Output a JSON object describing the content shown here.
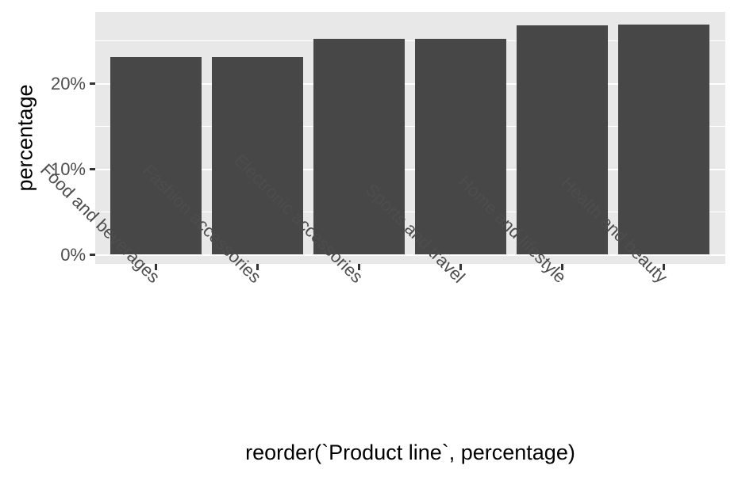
{
  "chart_data": {
    "type": "bar",
    "title": "",
    "xlabel": "reorder(`Product line`, percentage)",
    "ylabel": "percentage",
    "categories": [
      "Food and beverages",
      "Fashion accessories",
      "Electronic accessories",
      "Sports and travel",
      "Home and lifestyle",
      "Health and beauty"
    ],
    "values": [
      23.1,
      23.1,
      25.2,
      25.2,
      26.8,
      26.9
    ],
    "ylim": [
      0,
      28.4
    ],
    "yticks": [
      0,
      10,
      20
    ],
    "ytick_labels": [
      "0%",
      "10%",
      "20%"
    ],
    "yminor_ticks": [
      5,
      15,
      25
    ],
    "grid": "major and minor horizontal white lines",
    "legend_position": "none",
    "colors": {
      "bar_fill": "#474747",
      "panel_background": "#E8E8E8",
      "gridline": "#FFFFFF",
      "tick_mark": "#333333",
      "tick_label_text": "#4D4D4D",
      "axis_title_text": "#000000",
      "figure_background": "#FFFFFF"
    }
  }
}
